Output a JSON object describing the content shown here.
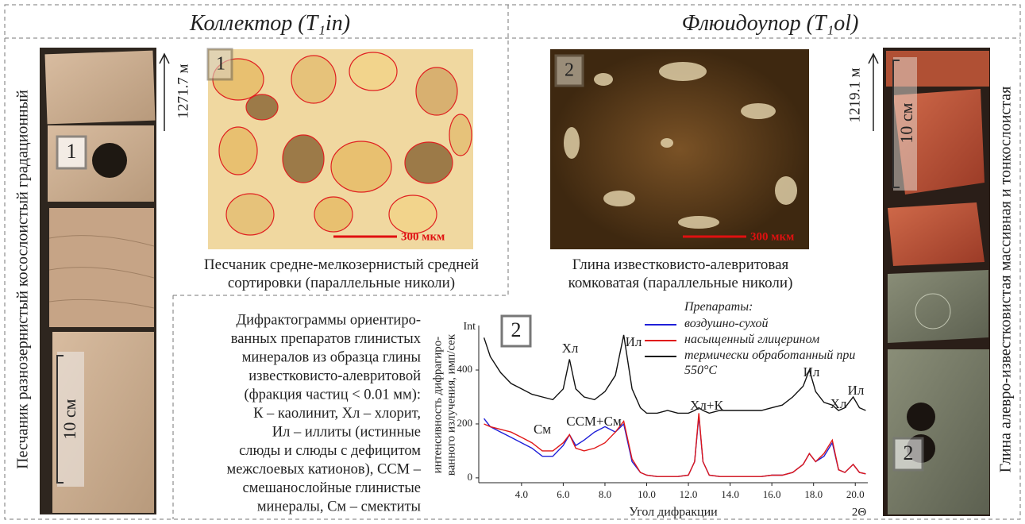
{
  "headers": {
    "left": "Коллектор (T₁in)",
    "right": "Флюидоупор (T₁ol)"
  },
  "left_core": {
    "title": "Песчаник разнозернистый косослоистый градационный",
    "marker": "1",
    "scale": "10 см",
    "depth": "1271.7 м"
  },
  "right_core": {
    "title": "Глина алевро-известковистая массивная и тонкослоистая",
    "marker": "2",
    "scale": "10 см",
    "depth": "1219.1 м"
  },
  "thin_section_1": {
    "marker": "1",
    "scale": "300 мкм",
    "caption": [
      "Песчаник средне-мелкозернистый средней",
      "сортировки (параллельные николи)"
    ]
  },
  "thin_section_2": {
    "marker": "2",
    "scale": "300 мкм",
    "caption": [
      "Глина известковисто-алевритовая",
      "комковатая (параллельные николи)"
    ]
  },
  "description": [
    "Дифрактограммы ориентиро-",
    "ванных препаратов глинистых",
    "минералов из образца глины",
    "известковисто-алевритовой",
    "(фракция частиц < 0.01 мм):",
    "К – каолинит, Хл – хлорит,",
    "Ил – иллиты (истинные",
    "слюды и слюды с дефицитом",
    "межслоевых катионов), ССМ –",
    "смешанослойные глинистые",
    "минералы, См – смектиты"
  ],
  "chart_data": {
    "type": "line",
    "marker": "2",
    "y_axis_title": "Int",
    "ylabel": [
      "интенсивность дифрагиро-",
      "ванного излучения, имп/сек"
    ],
    "xlabel": "Угол дифракции",
    "x_unit": "2Θ",
    "legend_title": "Препараты:",
    "annotations": [
      "Хл",
      "Ил",
      "Хл+К",
      "Ил",
      "Хл",
      "Ил",
      "См",
      "ССМ+См"
    ],
    "xlim": [
      1.95,
      20.6
    ],
    "ylim": [
      -18,
      565
    ],
    "xticks": [
      {
        "value": 4,
        "label": "4.0"
      },
      {
        "value": 6,
        "label": "6.0"
      },
      {
        "value": 8,
        "label": "8.0"
      },
      {
        "value": 10,
        "label": "10.0"
      },
      {
        "value": 12,
        "label": "12.0"
      },
      {
        "value": 14,
        "label": "14.0"
      },
      {
        "value": 16,
        "label": "16.0"
      },
      {
        "value": 18,
        "label": "18.0"
      },
      {
        "value": 20,
        "label": "20.0"
      }
    ],
    "yticks": [
      0,
      200,
      400
    ],
    "x": [
      2.2,
      2.5,
      3,
      3.5,
      4,
      4.5,
      5,
      5.5,
      6,
      6.3,
      6.6,
      7,
      7.5,
      8,
      8.5,
      8.9,
      9.3,
      9.7,
      10,
      10.5,
      11,
      11.5,
      12,
      12.3,
      12.5,
      12.7,
      13,
      13.5,
      14,
      14.5,
      15,
      15.5,
      16,
      16.5,
      17,
      17.5,
      17.8,
      18.1,
      18.5,
      18.9,
      19.2,
      19.5,
      19.9,
      20.2,
      20.5
    ],
    "series": [
      {
        "name": "воздушно-сухой",
        "color": "#1f1fd8",
        "values": [
          220,
          190,
          170,
          150,
          130,
          110,
          80,
          80,
          120,
          160,
          120,
          140,
          170,
          190,
          170,
          200,
          60,
          20,
          10,
          5,
          5,
          5,
          10,
          60,
          230,
          60,
          10,
          5,
          5,
          5,
          5,
          5,
          10,
          10,
          20,
          50,
          90,
          60,
          80,
          130,
          30,
          20,
          50,
          20,
          15
        ]
      },
      {
        "name": "насыщенный глицерином",
        "color": "#e01818",
        "values": [
          200,
          190,
          180,
          170,
          150,
          130,
          100,
          100,
          130,
          160,
          110,
          100,
          110,
          130,
          170,
          210,
          70,
          20,
          10,
          5,
          5,
          5,
          10,
          60,
          240,
          60,
          10,
          5,
          5,
          5,
          5,
          5,
          10,
          10,
          20,
          50,
          90,
          60,
          90,
          140,
          30,
          20,
          50,
          20,
          15
        ]
      },
      {
        "name": "термически обработанный при 550°C",
        "color": "#111111",
        "values": [
          520,
          450,
          390,
          350,
          330,
          310,
          300,
          290,
          330,
          440,
          330,
          300,
          290,
          320,
          380,
          530,
          330,
          260,
          240,
          240,
          250,
          240,
          240,
          250,
          260,
          250,
          240,
          250,
          250,
          250,
          250,
          250,
          260,
          270,
          300,
          340,
          400,
          320,
          280,
          270,
          250,
          260,
          300,
          260,
          250
        ]
      }
    ]
  }
}
